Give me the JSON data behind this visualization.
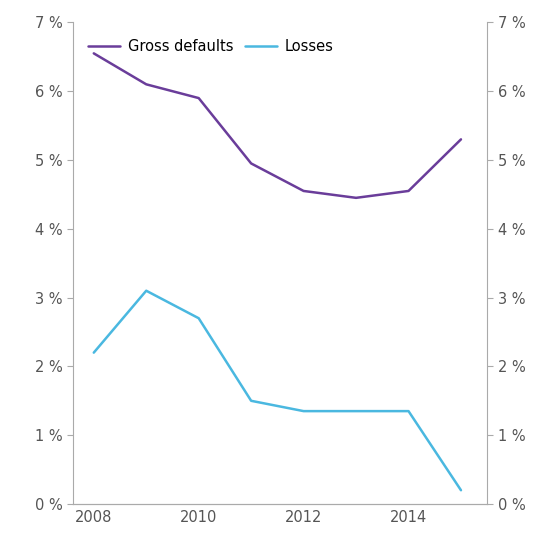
{
  "years": [
    2008,
    2009,
    2010,
    2011,
    2012,
    2013,
    2014,
    2015
  ],
  "gross_defaults": [
    0.0655,
    0.061,
    0.059,
    0.0495,
    0.0455,
    0.0445,
    0.0455,
    0.053
  ],
  "losses": [
    0.022,
    0.031,
    0.027,
    0.015,
    0.0135,
    0.0135,
    0.0135,
    0.002
  ],
  "gross_defaults_color": "#6a3d9a",
  "losses_color": "#4ab8e0",
  "gross_defaults_label": "Gross defaults",
  "losses_label": "Losses",
  "ylim": [
    0,
    0.07
  ],
  "yticks": [
    0,
    0.01,
    0.02,
    0.03,
    0.04,
    0.05,
    0.06,
    0.07
  ],
  "xlim": [
    2007.6,
    2015.5
  ],
  "xticks": [
    2008,
    2010,
    2012,
    2014
  ],
  "background_color": "#ffffff",
  "linewidth": 1.8,
  "spine_color": "#aaaaaa",
  "tick_color": "#555555",
  "fontsize": 10.5
}
